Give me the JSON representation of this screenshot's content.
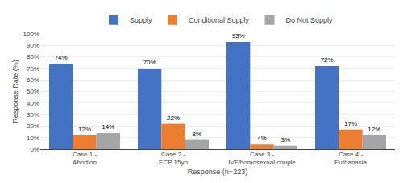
{
  "chart_data": {
    "type": "bar",
    "categories": [
      "Case 1 - Abortion",
      "Case 2 - ECP 15yo",
      "Case 3 - IVF/homosexual couple",
      "Case 4 - Euthanasia"
    ],
    "series": [
      {
        "name": "Supply",
        "color": "#4472C4",
        "values": [
          74,
          70,
          93,
          72
        ],
        "value_labels": [
          "74%",
          "70%",
          "93%",
          "72%"
        ]
      },
      {
        "name": "Conditional Supply",
        "color": "#ED7D31",
        "values": [
          12,
          22,
          4,
          17
        ],
        "value_labels": [
          "12%",
          "22%",
          "4%",
          "17%"
        ]
      },
      {
        "name": "Do Not Supply",
        "color": "#A5A5A5",
        "values": [
          14,
          8,
          3,
          12
        ],
        "value_labels": [
          "14%",
          "8%",
          "3%",
          "12%"
        ]
      }
    ],
    "xlabel": "Response (n=223)",
    "ylabel": "Response Rate (%)",
    "ylim": [
      0,
      100
    ],
    "yticks": [
      {
        "value": 0,
        "label": "0%"
      },
      {
        "value": 10,
        "label": "10%"
      },
      {
        "value": 20,
        "label": "20%"
      },
      {
        "value": 30,
        "label": "30%"
      },
      {
        "value": 40,
        "label": "40%"
      },
      {
        "value": 50,
        "label": "50%"
      },
      {
        "value": 60,
        "label": "60%"
      },
      {
        "value": 70,
        "label": "70%"
      },
      {
        "value": 80,
        "label": "80%"
      },
      {
        "value": 90,
        "label": "90%"
      },
      {
        "value": 100,
        "label": "100%"
      }
    ],
    "grid": true,
    "legend": "top",
    "data_labels": true
  }
}
